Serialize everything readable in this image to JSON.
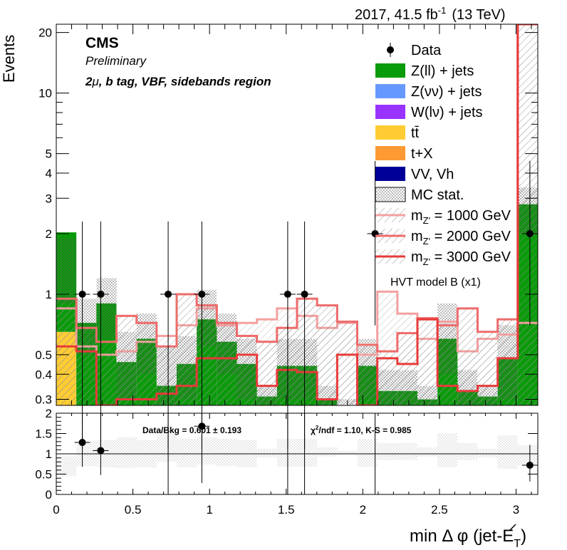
{
  "header": {
    "lumi_label": "2017, 41.5 fb",
    "lumi_exp": "-1",
    "energy_label": "(13 TeV)"
  },
  "cms": {
    "label": "CMS",
    "preliminary": "Preliminary",
    "region_prefix": "2",
    "region_mu": "μ",
    "region_suffix": ", b tag, VBF, sidebands region"
  },
  "model_note": "HVT model B (x1)",
  "legend": [
    {
      "key": "data",
      "label": "Data",
      "style": "marker"
    },
    {
      "key": "zll",
      "label": "Z(ll) + jets",
      "style": "fill",
      "color": "#0a9b0a"
    },
    {
      "key": "znn",
      "label": "Z(νν) + jets",
      "style": "fill",
      "color": "#6699ff"
    },
    {
      "key": "wln",
      "label": "W(lν) + jets",
      "style": "fill",
      "color": "#9933ff"
    },
    {
      "key": "tt",
      "label": "tt̄",
      "style": "fill",
      "color": "#ffcc33"
    },
    {
      "key": "tx",
      "label": "t+X",
      "style": "fill",
      "color": "#ff9933"
    },
    {
      "key": "vv",
      "label": "VV, Vh",
      "style": "fill",
      "color": "#000099"
    },
    {
      "key": "mcstat",
      "label": "MC stat.",
      "style": "dots"
    },
    {
      "key": "s1000",
      "label_pre": "m",
      "label_sub": "Z'",
      "label_post": " = 1000 GeV",
      "style": "hatch",
      "color": "#f4a0a0"
    },
    {
      "key": "s2000",
      "label_pre": "m",
      "label_sub": "Z'",
      "label_post": " = 2000 GeV",
      "style": "hatch",
      "color": "#ee6b6b"
    },
    {
      "key": "s3000",
      "label_pre": "m",
      "label_sub": "Z'",
      "label_post": " = 3000 GeV",
      "style": "hatch",
      "color": "#e83a3a"
    }
  ],
  "axes": {
    "main_ylabel": "Events",
    "xlabel_prefix": "min Δ φ (jet-",
    "xlabel_symbol": "E",
    "xlabel_sub": "T",
    "xlabel_suffix": ")",
    "x_ticks": [
      "0",
      "0.5",
      "1",
      "1.5",
      "2",
      "2.5",
      "3"
    ],
    "y_ticks": [
      {
        "v": 0.3,
        "label": "0.3"
      },
      {
        "v": 0.4,
        "label": "0.4"
      },
      {
        "v": 0.5,
        "label": "0.5"
      },
      {
        "v": 1,
        "label": "1"
      },
      {
        "v": 2,
        "label": "2"
      },
      {
        "v": 3,
        "label": "3"
      },
      {
        "v": 4,
        "label": "4"
      },
      {
        "v": 5,
        "label": "5"
      },
      {
        "v": 10,
        "label": "10"
      },
      {
        "v": 20,
        "label": "20"
      }
    ],
    "ratio_ticks": [
      "0",
      "0.5",
      "1",
      "1.5",
      "2"
    ]
  },
  "ratio_text": {
    "data_bkg": "Data/Bkg = 0.601 ± 0.193",
    "chi2_pre": "χ",
    "chi2_exp": "2",
    "chi2_post": "/ndf = 1.10,   K-S = 0.985"
  },
  "chart_data": {
    "type": "histogram",
    "x_range": [
      0,
      3.1416
    ],
    "y_range": [
      0.28,
      22
    ],
    "y_scale": "log",
    "ratio_range": [
      0,
      2
    ],
    "bin_edges": [
      0,
      0.1309,
      0.2618,
      0.3927,
      0.5236,
      0.6545,
      0.7854,
      0.9163,
      1.0472,
      1.1781,
      1.309,
      1.4399,
      1.5708,
      1.7017,
      1.8326,
      1.9635,
      2.0944,
      2.2253,
      2.3562,
      2.4871,
      2.618,
      2.7489,
      2.8798,
      3.0107,
      3.1416
    ],
    "stack": {
      "zll": [
        1.38,
        0.72,
        0.9,
        0.46,
        0.6,
        0.35,
        0.45,
        0.75,
        0.58,
        0.45,
        0.31,
        0.44,
        0.44,
        0.3,
        0.28,
        0.44,
        0.33,
        0.33,
        0.3,
        0.6,
        0.33,
        0.31,
        0.48,
        2.8
      ],
      "tt": [
        0.65,
        0,
        0,
        0,
        0,
        0,
        0,
        0,
        0,
        0,
        0,
        0,
        0,
        0,
        0,
        0,
        0,
        0,
        0,
        0,
        0,
        0,
        0,
        0
      ]
    },
    "mc_stat_band": [
      {
        "lo": 0.9,
        "hi": 1.9
      },
      {
        "lo": 0.5,
        "hi": 0.95
      },
      {
        "lo": 0.6,
        "hi": 1.2
      },
      {
        "lo": 0.3,
        "hi": 0.65
      },
      {
        "lo": 0.4,
        "hi": 0.8
      },
      {
        "lo": 0.28,
        "hi": 0.55
      },
      {
        "lo": 0.3,
        "hi": 0.62
      },
      {
        "lo": 0.55,
        "hi": 1.05
      },
      {
        "lo": 0.4,
        "hi": 0.8
      },
      {
        "lo": 0.3,
        "hi": 0.6
      },
      {
        "lo": 0.28,
        "hi": 0.35
      },
      {
        "lo": 0.3,
        "hi": 0.6
      },
      {
        "lo": 0.3,
        "hi": 0.6
      },
      {
        "lo": 0.28,
        "hi": 0.35
      },
      {
        "lo": 0.28,
        "hi": 0.3
      },
      {
        "lo": 0.3,
        "hi": 0.6
      },
      {
        "lo": 0.28,
        "hi": 0.42
      },
      {
        "lo": 0.28,
        "hi": 0.42
      },
      {
        "lo": 0.28,
        "hi": 0.35
      },
      {
        "lo": 0.4,
        "hi": 0.9
      },
      {
        "lo": 0.28,
        "hi": 0.42
      },
      {
        "lo": 0.28,
        "hi": 0.35
      },
      {
        "lo": 0.3,
        "hi": 0.7
      },
      {
        "lo": 2.0,
        "hi": 3.4
      }
    ],
    "signals": [
      {
        "key": "s1000",
        "color": "#f4a0a0",
        "values": [
          0.85,
          0.55,
          0.5,
          0.52,
          0.58,
          0.62,
          0.7,
          0.85,
          0.7,
          0.72,
          0.75,
          0.85,
          0.78,
          0.68,
          0.72,
          0.5,
          1.03,
          0.8,
          0.6,
          0.73,
          0.52,
          0.6,
          0.63,
          0.72
        ]
      },
      {
        "key": "s2000",
        "color": "#ee6b6b",
        "values": [
          0.95,
          0.68,
          0.58,
          0.78,
          0.72,
          0.55,
          1.0,
          0.88,
          0.72,
          0.62,
          0.58,
          0.68,
          0.95,
          0.88,
          0.73,
          0.56,
          0.52,
          0.64,
          0.76,
          0.7,
          0.85,
          0.65,
          0.75,
          22.0
        ]
      },
      {
        "key": "s3000",
        "color": "#e83a3a",
        "values": [
          0.55,
          0.52,
          0.28,
          0.3,
          0.3,
          0.32,
          0.35,
          0.48,
          0.48,
          0.5,
          0.35,
          0.42,
          0.41,
          0.3,
          0.5,
          0.28,
          0.48,
          0.45,
          0.75,
          0.35,
          0.33,
          0.35,
          0.48,
          22.0
        ]
      }
    ],
    "data_points": [
      {
        "x": 0.17,
        "y": 1,
        "err_lo": 0.83,
        "err_hi": 1.3,
        "ratio": 1.28,
        "r_lo": 0.6,
        "r_hi": 1.0
      },
      {
        "x": 0.29,
        "y": 1,
        "err_lo": 0.83,
        "err_hi": 1.3,
        "ratio": 1.08,
        "r_lo": 0.6,
        "r_hi": 1.0
      },
      {
        "x": 0.73,
        "y": 1,
        "err_lo": 0.83,
        "err_hi": 1.3,
        "ratio": null
      },
      {
        "x": 0.95,
        "y": 1,
        "err_lo": 0.83,
        "err_hi": 1.3,
        "ratio": 1.68,
        "r_lo": 1.4,
        "r_hi": 1.0
      },
      {
        "x": 1.51,
        "y": 1,
        "err_lo": 0.83,
        "err_hi": 1.3,
        "ratio": null
      },
      {
        "x": 1.62,
        "y": 1,
        "err_lo": 0.83,
        "err_hi": 1.3,
        "ratio": null
      },
      {
        "x": 2.08,
        "y": 2,
        "err_lo": 1.3,
        "err_hi": 2.6,
        "ratio": null
      },
      {
        "x": 3.09,
        "y": 2,
        "err_lo": 1.3,
        "err_hi": 2.6,
        "ratio": 0.72,
        "r_lo": 0.4,
        "r_hi": 0.5
      }
    ]
  }
}
